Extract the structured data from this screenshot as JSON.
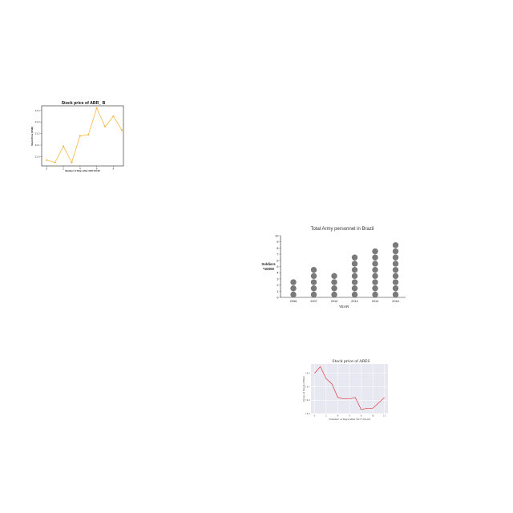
{
  "chart_data": [
    {
      "type": "line",
      "title": "Stock price of ABR_ B",
      "xlabel": "Number of Days after 2017-03-22",
      "ylabel": "Stock Price (USD)",
      "x": [
        0,
        1,
        2,
        3,
        4,
        5,
        6,
        7,
        8,
        9
      ],
      "y": [
        20.97,
        20.95,
        21.09,
        20.95,
        21.18,
        21.19,
        21.42,
        21.26,
        21.35,
        21.23
      ],
      "xticks": [
        "0",
        "2",
        "4",
        "6",
        "8"
      ],
      "yticks": [
        "21.0",
        "21.1",
        "21.2",
        "21.3",
        "21.4"
      ],
      "xlim": [
        -0.6,
        9.2
      ],
      "ylim": [
        20.92,
        21.44
      ],
      "color": "#f5b942",
      "marker": "circle",
      "grid": false
    },
    {
      "type": "bar",
      "style": "pictograph",
      "title": "Total Army personnel in Brazil",
      "xlabel": "YEAR",
      "ylabel_lines": [
        "Soldiers",
        "*10000"
      ],
      "categories": [
        "2006",
        "2007",
        "2010",
        "2012",
        "2014",
        "2016"
      ],
      "values": [
        3,
        5,
        4,
        7,
        8,
        9
      ],
      "yticks": [
        "0",
        "1",
        "2",
        "3",
        "4",
        "5",
        "6",
        "7",
        "8",
        "9",
        "10"
      ],
      "ylim": [
        0,
        10
      ],
      "color": "#7a7a7a",
      "grid": false
    },
    {
      "type": "line",
      "title": "Stock price of ARES",
      "xlabel": "Number of Days after 2017-03-29",
      "ylabel": "Price of Stock (USD)",
      "x": [
        0,
        1,
        2,
        3,
        4,
        5,
        6,
        7,
        8,
        9,
        10,
        11,
        12
      ],
      "y": [
        19.2,
        19.25,
        19.16,
        19.12,
        19.02,
        19.01,
        19.01,
        19.02,
        18.93,
        18.94,
        18.94,
        18.98,
        19.02
      ],
      "xticks": [
        "0",
        "2",
        "4",
        "6",
        "8",
        "10",
        "12"
      ],
      "yticks": [
        "18.9",
        "19.0",
        "19.1",
        "19.2"
      ],
      "xlim": [
        -0.6,
        12.6
      ],
      "ylim": [
        18.9,
        19.27
      ],
      "color": "#e03b3b",
      "background": "#e8e8f2",
      "grid": true
    }
  ]
}
